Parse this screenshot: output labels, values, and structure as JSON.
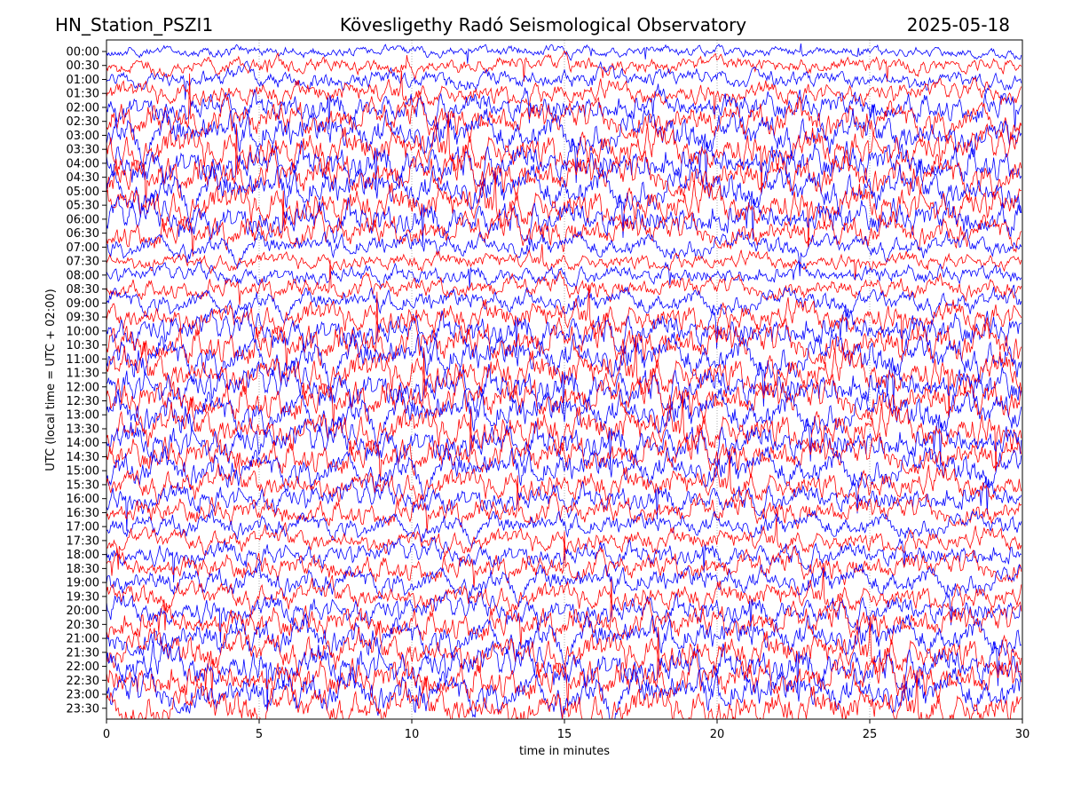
{
  "header": {
    "station": "HN_Station_PSZI1",
    "title": "Kövesligethy Radó Seismological Observatory",
    "date": "2025-05-18"
  },
  "chart_data": {
    "type": "line",
    "title": "Kövesligethy Radó Seismological Observatory",
    "xlabel": "time in minutes",
    "ylabel": "UTC (local time = UTC + 02:00)",
    "xlim": [
      0,
      30
    ],
    "xticks": [
      "0",
      "5",
      "10",
      "15",
      "20",
      "25",
      "30"
    ],
    "xtick_values": [
      0,
      5,
      10,
      15,
      20,
      25,
      30
    ],
    "grid": "vertical dotted at x ticks",
    "colors": [
      "#0000ff",
      "#ff0000"
    ],
    "row_labels": [
      "00:00",
      "00:30",
      "01:00",
      "01:30",
      "02:00",
      "02:30",
      "03:00",
      "03:30",
      "04:00",
      "04:30",
      "05:00",
      "05:30",
      "06:00",
      "06:30",
      "07:00",
      "07:30",
      "08:00",
      "08:30",
      "09:00",
      "09:30",
      "10:00",
      "10:30",
      "11:00",
      "11:30",
      "12:00",
      "12:30",
      "13:00",
      "13:30",
      "14:00",
      "14:30",
      "15:00",
      "15:30",
      "16:00",
      "16:30",
      "17:00",
      "17:30",
      "18:00",
      "18:30",
      "19:00",
      "19:30",
      "20:00",
      "20:30",
      "21:00",
      "21:30",
      "22:00",
      "22:30",
      "23:00",
      "23:30"
    ],
    "relative_amplitude": [
      0.3,
      0.45,
      0.5,
      0.6,
      0.8,
      0.9,
      1,
      1,
      1,
      1,
      1,
      1,
      0.95,
      0.8,
      0.6,
      0.45,
      0.5,
      0.55,
      0.6,
      0.8,
      0.9,
      1,
      1,
      1,
      1,
      1,
      1,
      1,
      0.95,
      0.9,
      0.9,
      0.8,
      0.75,
      0.7,
      0.6,
      0.6,
      0.65,
      0.7,
      0.7,
      0.7,
      0.75,
      0.85,
      0.9,
      0.95,
      1,
      1,
      1,
      1
    ]
  }
}
